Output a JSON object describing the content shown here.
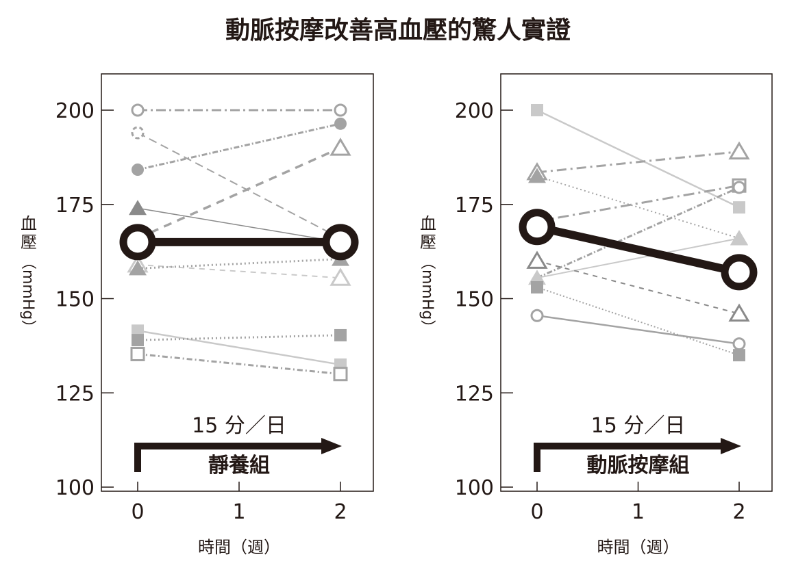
{
  "chart_data": {
    "title": "動脈按摩改善高血壓的驚人實證",
    "colors": {
      "dark": "#231815",
      "g1": "#8a8a8a",
      "g2": "#a3a3a3",
      "g3": "#c9c9c9"
    },
    "panels": [
      {
        "type": "line",
        "xlabel": "時間（週）",
        "ylabel": [
          "血",
          "壓",
          "（mmHg）"
        ],
        "x_ticks": [
          "0",
          "1",
          "2"
        ],
        "y_ticks": [
          200,
          175,
          150,
          125,
          100
        ],
        "ylim": [
          100,
          210
        ],
        "annotation_top": "15 分／日",
        "annotation_group": "靜養組",
        "series": [
          {
            "name": "s1",
            "values": [
              200,
              200
            ],
            "marker": "circle",
            "fill": false,
            "color": "g2",
            "dash": "14 5 3 5",
            "width": 3
          },
          {
            "name": "s2",
            "values": [
              194,
              166
            ],
            "marker": "circle-dashed",
            "fill": false,
            "color": "g2",
            "dash": "12 7",
            "width": 2
          },
          {
            "name": "s3",
            "values": [
              184.2,
              196.4
            ],
            "marker": "circle",
            "fill": true,
            "color": "g2",
            "dash": "8 3 2 3",
            "width": 3
          },
          {
            "name": "s4",
            "values": [
              174,
              165
            ],
            "marker": "triangle",
            "fill": true,
            "color": "g1",
            "dash": "",
            "width": 1.5
          },
          {
            "name": "s5",
            "values": [
              166,
              190
            ],
            "marker": "triangle",
            "fill": false,
            "color": "g2",
            "dash": "12 9",
            "width": 3.5,
            "marker_at": [
              1
            ]
          },
          {
            "name": "s6",
            "values": [
              159,
              155.5
            ],
            "marker": "triangle",
            "fill": false,
            "color": "g3",
            "dash": "8 7",
            "width": 2
          },
          {
            "name": "s7",
            "values": [
              158,
              160.5
            ],
            "marker": "triangle",
            "fill": true,
            "color": "g2",
            "dash": "2 4",
            "width": 3
          },
          {
            "name": "s8",
            "values": [
              141.5,
              132.5
            ],
            "marker": "square",
            "fill": true,
            "color": "g3",
            "dash": "",
            "width": 2.5
          },
          {
            "name": "s9",
            "values": [
              139,
              140.3
            ],
            "marker": "square",
            "fill": true,
            "color": "g2",
            "dash": "2 4",
            "width": 3
          },
          {
            "name": "s10",
            "values": [
              135.3,
              130
            ],
            "marker": "square",
            "fill": false,
            "color": "g2",
            "dash": "8 4 2 4",
            "width": 3
          },
          {
            "name": "mean",
            "values": [
              165,
              165
            ],
            "marker": "circle-big",
            "fill": false,
            "color": "dark",
            "dash": "",
            "width": 12
          }
        ]
      },
      {
        "type": "line",
        "xlabel": "時間（週）",
        "ylabel": [
          "血",
          "壓",
          "（mmHg）"
        ],
        "x_ticks": [
          "0",
          "1",
          "2"
        ],
        "y_ticks": [
          200,
          175,
          150,
          125,
          100
        ],
        "ylim": [
          100,
          210
        ],
        "annotation_top": "15 分／日",
        "annotation_group": "動脈按摩組",
        "series": [
          {
            "name": "r1",
            "values": [
              200,
              174.2
            ],
            "marker": "square",
            "fill": true,
            "color": "g3",
            "dash": "",
            "width": 2.5
          },
          {
            "name": "r2",
            "values": [
              183.5,
              189
            ],
            "marker": "triangle",
            "fill": false,
            "color": "g2",
            "dash": "14 6 3 6",
            "width": 3
          },
          {
            "name": "r3",
            "values": [
              182.5,
              166
            ],
            "marker": "triangle",
            "fill": true,
            "color": "g2",
            "dash": "2 4",
            "width": 2
          },
          {
            "name": "r4",
            "values": [
              170.5,
              180
            ],
            "marker": "square",
            "fill": false,
            "color": "g2",
            "dash": "16 6 3 6",
            "width": 3,
            "marker_at": [
              1
            ]
          },
          {
            "name": "r5",
            "values": [
              155.5,
              179.5
            ],
            "marker": "circle",
            "fill": false,
            "color": "g2",
            "dash": "8 3 2 3",
            "width": 3,
            "marker_at": [
              1
            ]
          },
          {
            "name": "r6",
            "values": [
              155.5,
              166
            ],
            "marker": "triangle",
            "fill": true,
            "color": "g3",
            "dash": "",
            "width": 2
          },
          {
            "name": "r7",
            "values": [
              160,
              146
            ],
            "marker": "triangle",
            "fill": false,
            "color": "g1",
            "dash": "7 7",
            "width": 2
          },
          {
            "name": "r8",
            "values": [
              153,
              135
            ],
            "marker": "square",
            "fill": true,
            "color": "g2",
            "dash": "2 3",
            "width": 2
          },
          {
            "name": "r9",
            "values": [
              145.5,
              138
            ],
            "marker": "circle",
            "fill": false,
            "color": "g2",
            "dash": "",
            "width": 2.5
          },
          {
            "name": "mean",
            "values": [
              169,
              157
            ],
            "marker": "circle-big",
            "fill": false,
            "color": "dark",
            "dash": "",
            "width": 12
          }
        ]
      }
    ]
  }
}
